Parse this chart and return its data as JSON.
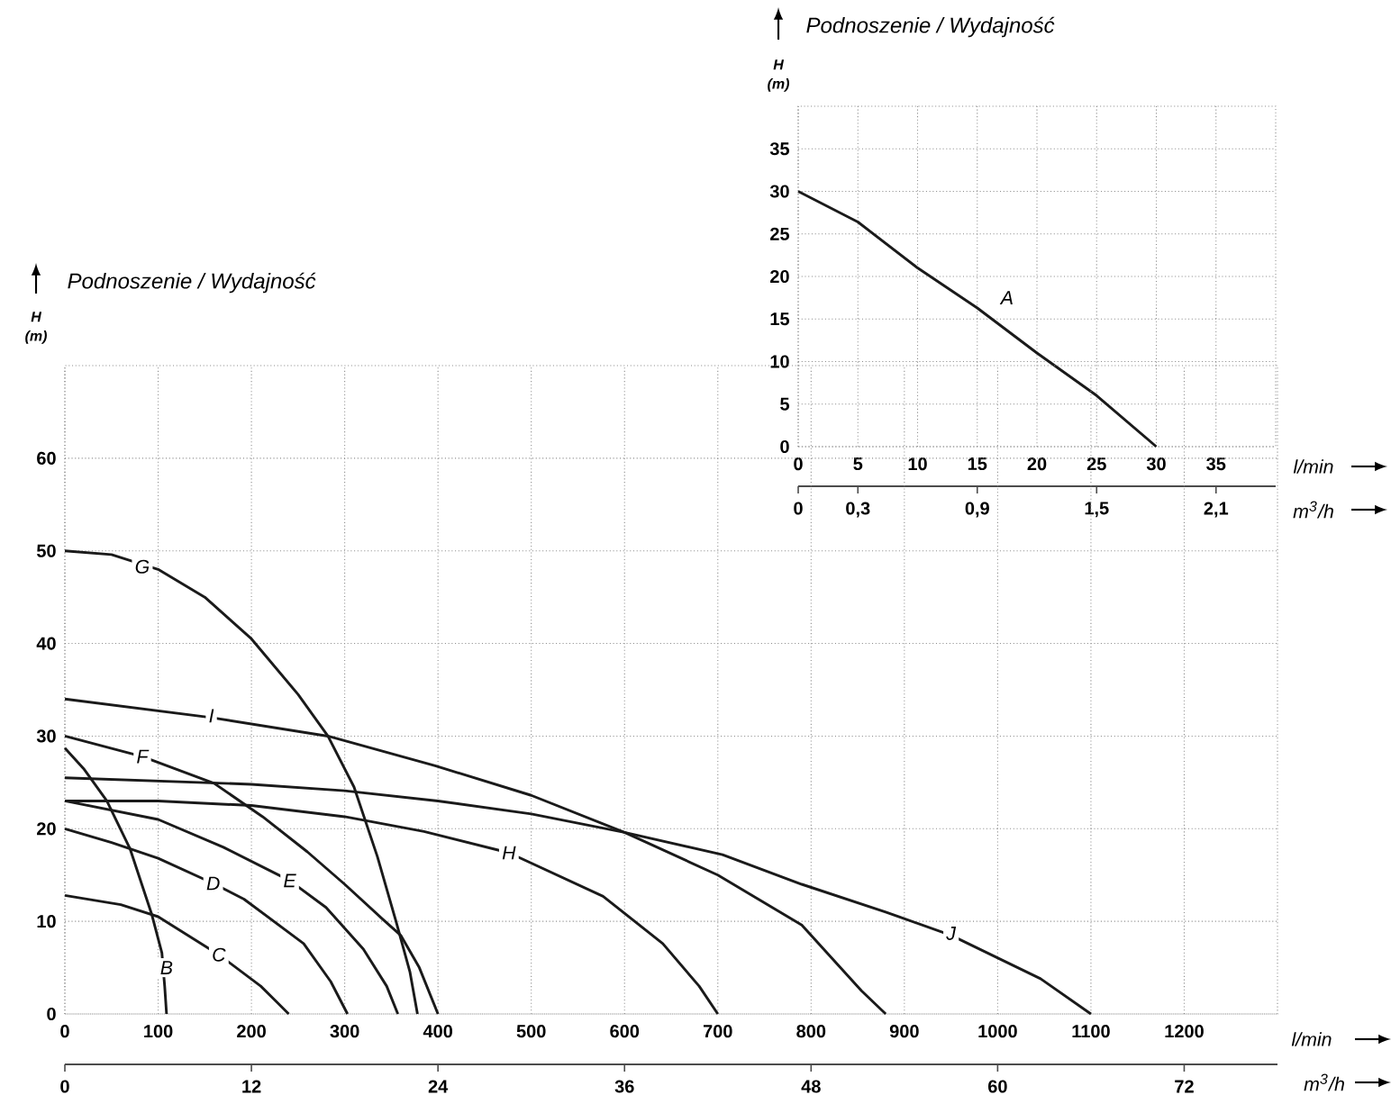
{
  "chart_data": [
    {
      "type": "line",
      "title": "Podnoszenie / Wydajność",
      "ylabel": "H (m)",
      "xlabel": "l/min",
      "x2label": "m$^{3}$/h",
      "xlim": [
        0,
        40
      ],
      "xticks": [
        0,
        5,
        10,
        15,
        20,
        25,
        30,
        35
      ],
      "ylim": [
        0,
        40
      ],
      "yticks": [
        0,
        5,
        10,
        15,
        20,
        25,
        30,
        35
      ],
      "x2lim": [
        0,
        2.4
      ],
      "x2ticks": [
        0,
        {
          "value": 0.3,
          "label": "0,3"
        },
        {
          "value": 0.9,
          "label": "0,9"
        },
        {
          "value": 1.5,
          "label": "1,5"
        },
        {
          "value": 2.1,
          "label": "2,1"
        }
      ],
      "grid": true,
      "series": [
        {
          "color": "#1a1a1a",
          "x": [
            0,
            5,
            10,
            15,
            20,
            25,
            30
          ],
          "values": [
            30,
            26.4,
            21,
            16.3,
            11,
            6,
            0
          ]
        }
      ],
      "annotations": [
        {
          "text": "A",
          "x": 17.5,
          "y": 17.5
        }
      ]
    },
    {
      "type": "line",
      "title": "Podnoszenie / Wydajność",
      "ylabel": "H (m)",
      "xlabel": "l/min",
      "x2label": "m$^{3}$/h",
      "xlim": [
        0,
        1300
      ],
      "xticks": [
        0,
        100,
        200,
        300,
        400,
        500,
        600,
        700,
        800,
        900,
        1000,
        1100,
        1200
      ],
      "ylim": [
        0,
        70
      ],
      "yticks": [
        0,
        10,
        20,
        30,
        40,
        50,
        60
      ],
      "x2lim": [
        0,
        78
      ],
      "x2ticks": [
        0,
        12,
        24,
        36,
        48,
        60,
        72
      ],
      "grid": true,
      "series": [
        {
          "color": "#1a1a1a",
          "x": [
            0,
            20,
            45,
            70,
            93,
            104,
            107,
            109
          ],
          "values": [
            28.7,
            26.5,
            23,
            17.8,
            10.8,
            6.6,
            3,
            0
          ]
        },
        {
          "color": "#1a1a1a",
          "x": [
            0,
            60,
            100,
            165,
            210,
            225,
            240
          ],
          "values": [
            12.8,
            11.8,
            10.5,
            6.4,
            3,
            1.5,
            0
          ]
        },
        {
          "color": "#1a1a1a",
          "x": [
            0,
            50,
            100,
            159,
            192,
            256,
            285,
            303
          ],
          "values": [
            20,
            18.5,
            16.8,
            14.1,
            12.4,
            7.6,
            3.5,
            0
          ]
        },
        {
          "color": "#1a1a1a",
          "x": [
            0,
            100,
            170,
            241,
            280,
            320,
            345,
            357
          ],
          "values": [
            23,
            21,
            18,
            14.4,
            11.5,
            7,
            3,
            0
          ]
        },
        {
          "color": "#1a1a1a",
          "x": [
            0,
            83,
            160,
            212,
            260,
            300,
            340,
            360,
            380,
            400
          ],
          "values": [
            30,
            27.8,
            24.9,
            21.3,
            17.5,
            14,
            10.3,
            8.5,
            5,
            0
          ]
        },
        {
          "color": "#1a1a1a",
          "x": [
            0,
            50,
            100,
            150,
            200,
            250,
            282,
            310,
            335,
            355,
            370,
            378
          ],
          "values": [
            50,
            49.6,
            48,
            45,
            40.5,
            34.5,
            30,
            24.5,
            17,
            10,
            4.5,
            0
          ]
        },
        {
          "color": "#1a1a1a",
          "x": [
            0,
            100,
            200,
            300,
            385,
            476,
            577,
            641,
            680,
            700
          ],
          "values": [
            23,
            23,
            22.5,
            21.3,
            19.7,
            17.4,
            12.7,
            7.6,
            3,
            0
          ]
        },
        {
          "color": "#1a1a1a",
          "x": [
            0,
            157,
            282,
            397,
            500,
            600,
            700,
            790,
            854,
            880
          ],
          "values": [
            34,
            32,
            30,
            26.8,
            23.6,
            19.6,
            15,
            9.6,
            2.5,
            0
          ]
        },
        {
          "color": "#1a1a1a",
          "x": [
            0,
            200,
            300,
            400,
            500,
            600,
            705,
            790,
            880,
            950,
            1046,
            1100
          ],
          "values": [
            25.5,
            24.8,
            24.1,
            23,
            21.6,
            19.6,
            17.2,
            14,
            11,
            8.5,
            3.8,
            0
          ]
        }
      ],
      "annotations": [
        {
          "text": "B",
          "x": 109,
          "y": 5
        },
        {
          "text": "C",
          "x": 165,
          "y": 6.4
        },
        {
          "text": "D",
          "x": 159,
          "y": 14.1
        },
        {
          "text": "E",
          "x": 241,
          "y": 14.4
        },
        {
          "text": "F",
          "x": 83,
          "y": 27.8
        },
        {
          "text": "G",
          "x": 83,
          "y": 48.3
        },
        {
          "text": "H",
          "x": 476,
          "y": 17.4
        },
        {
          "text": "I",
          "x": 157,
          "y": 32.2
        },
        {
          "text": "J",
          "x": 950,
          "y": 8.7
        }
      ]
    }
  ]
}
